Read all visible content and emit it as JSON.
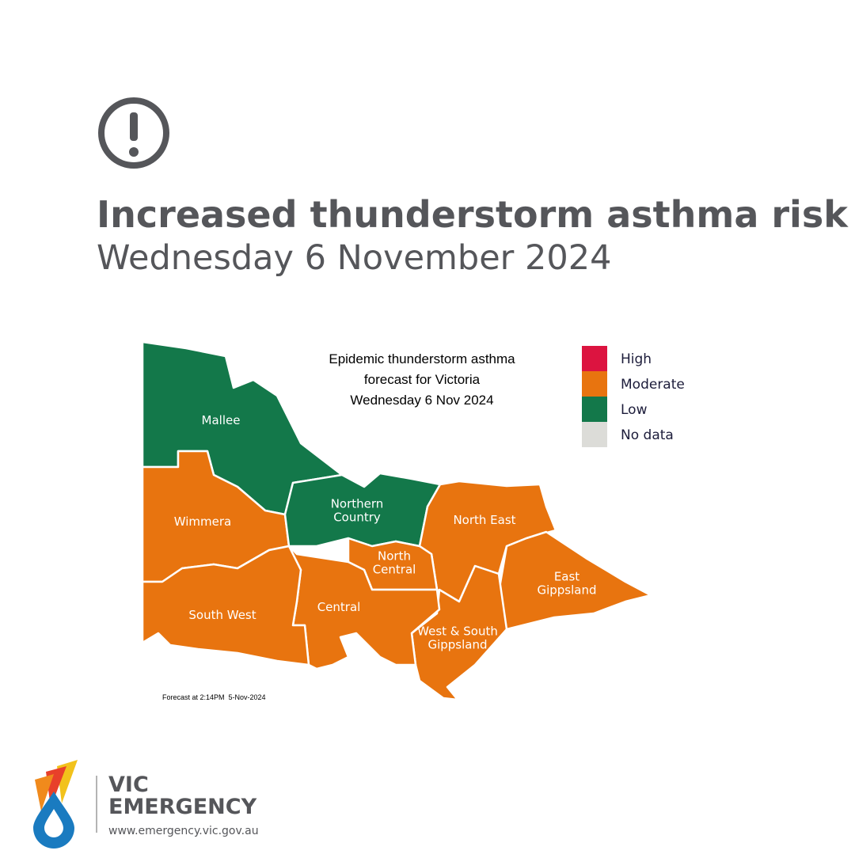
{
  "header": {
    "title": "Increased thunderstorm asthma risk",
    "subtitle": "Wednesday 6 November 2024"
  },
  "map": {
    "title_lines": [
      "Epidemic thunderstorm asthma",
      "forecast for Victoria",
      "Wednesday 6 Nov 2024"
    ],
    "legend": [
      {
        "label": "High",
        "color": "#dc1440"
      },
      {
        "label": "Moderate",
        "color": "#e8740f"
      },
      {
        "label": "Low",
        "color": "#13784a"
      },
      {
        "label": "No data",
        "color": "#dcdcd8"
      }
    ],
    "regions": [
      {
        "label": [
          "Mallee"
        ],
        "color": "#13784a"
      },
      {
        "label": [
          "Wimmera"
        ],
        "color": "#e8740f"
      },
      {
        "label": [
          "Northern",
          "Country"
        ],
        "color": "#13784a"
      },
      {
        "label": [
          "North East"
        ],
        "color": "#e8740f"
      },
      {
        "label": [
          "East",
          "Gippsland"
        ],
        "color": "#e8740f"
      },
      {
        "label": [
          "West & South",
          "Gippsland"
        ],
        "color": "#e8740f"
      },
      {
        "label": [
          "North",
          "Central"
        ],
        "color": "#e8740f"
      },
      {
        "label": [
          "Central"
        ],
        "color": "#e8740f"
      },
      {
        "label": [
          "South West"
        ],
        "color": "#e8740f"
      }
    ],
    "footnote": "Forecast at 2:14PM  5-Nov-2024"
  },
  "footer": {
    "brand_lines": [
      "VIC",
      "EMERGENCY"
    ],
    "url": "www.emergency.vic.gov.au"
  }
}
